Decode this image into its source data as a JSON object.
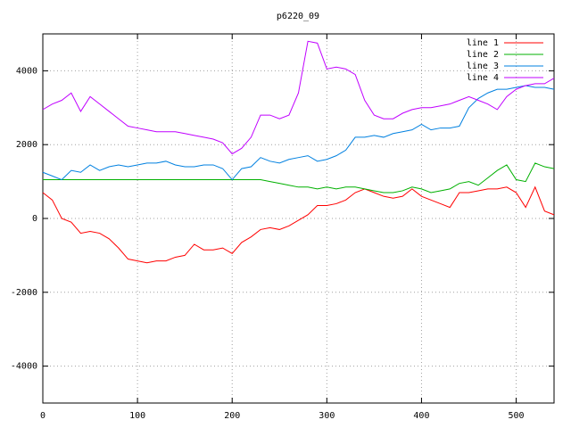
{
  "chart_data": {
    "type": "line",
    "title": "p6220_09",
    "x": [
      0,
      10,
      20,
      30,
      40,
      50,
      60,
      70,
      80,
      90,
      100,
      110,
      120,
      130,
      140,
      150,
      160,
      170,
      180,
      190,
      200,
      210,
      220,
      230,
      240,
      250,
      260,
      270,
      280,
      290,
      300,
      310,
      320,
      330,
      340,
      350,
      360,
      370,
      380,
      390,
      400,
      410,
      420,
      430,
      440,
      450,
      460,
      470,
      480,
      490,
      500,
      510,
      520,
      530,
      540
    ],
    "series": [
      {
        "name": "line 1",
        "color": "#ff0000",
        "values": [
          700,
          500,
          0,
          -100,
          -400,
          -350,
          -400,
          -550,
          -800,
          -1100,
          -1150,
          -1200,
          -1150,
          -1150,
          -1050,
          -1000,
          -700,
          -850,
          -850,
          -800,
          -950,
          -650,
          -500,
          -300,
          -250,
          -300,
          -200,
          -50,
          100,
          350,
          350,
          400,
          500,
          700,
          800,
          700,
          600,
          550,
          600,
          800,
          600,
          500,
          400,
          300,
          700,
          700,
          750,
          800,
          800,
          850,
          700,
          300,
          850,
          200,
          100
        ]
      },
      {
        "name": "line 2",
        "color": "#00b000",
        "values": [
          1050,
          1050,
          1050,
          1050,
          1050,
          1050,
          1050,
          1050,
          1050,
          1050,
          1050,
          1050,
          1050,
          1050,
          1050,
          1050,
          1050,
          1050,
          1050,
          1050,
          1050,
          1050,
          1050,
          1050,
          1000,
          950,
          900,
          850,
          850,
          800,
          850,
          800,
          850,
          850,
          800,
          750,
          700,
          700,
          750,
          850,
          800,
          700,
          750,
          800,
          950,
          1000,
          900,
          1100,
          1300,
          1450,
          1050,
          1000,
          1500,
          1400,
          1350
        ]
      },
      {
        "name": "line 3",
        "color": "#0080e0",
        "values": [
          1250,
          1150,
          1050,
          1300,
          1250,
          1450,
          1300,
          1400,
          1450,
          1400,
          1450,
          1500,
          1500,
          1550,
          1450,
          1400,
          1400,
          1450,
          1450,
          1350,
          1050,
          1350,
          1400,
          1650,
          1550,
          1500,
          1600,
          1650,
          1700,
          1550,
          1600,
          1700,
          1850,
          2200,
          2200,
          2250,
          2200,
          2300,
          2350,
          2400,
          2550,
          2400,
          2450,
          2450,
          2500,
          3000,
          3250,
          3400,
          3500,
          3500,
          3550,
          3600,
          3550,
          3550,
          3500
        ]
      },
      {
        "name": "line 4",
        "color": "#c000ff",
        "values": [
          2950,
          3100,
          3200,
          3400,
          2900,
          3300,
          3100,
          2900,
          2700,
          2500,
          2450,
          2400,
          2350,
          2350,
          2350,
          2300,
          2250,
          2200,
          2150,
          2050,
          1750,
          1900,
          2200,
          2800,
          2800,
          2700,
          2800,
          3400,
          4800,
          4750,
          4050,
          4100,
          4050,
          3900,
          3200,
          2800,
          2700,
          2700,
          2850,
          2950,
          3000,
          3000,
          3050,
          3100,
          3200,
          3300,
          3200,
          3100,
          2950,
          3300,
          3500,
          3600,
          3650,
          3650,
          3800
        ]
      }
    ],
    "xlim": [
      0,
      540
    ],
    "ylim": [
      -5000,
      5000
    ],
    "xticks": [
      0,
      100,
      200,
      300,
      400,
      500
    ],
    "yticks": [
      -4000,
      -2000,
      0,
      2000,
      4000
    ],
    "grid": true,
    "legend": "upper right"
  }
}
